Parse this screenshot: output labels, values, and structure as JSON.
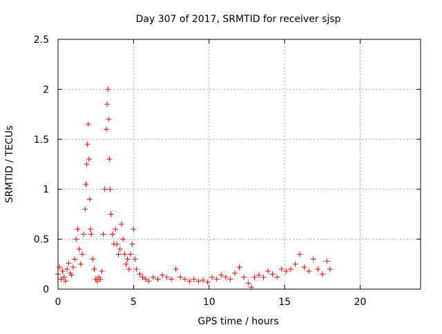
{
  "chart_data": {
    "type": "scatter",
    "title": "Day 307 of 2017, SRMTID for receiver sjsp",
    "xlabel": "GPS time / hours",
    "ylabel": "SRMTID / TECUs",
    "xlim": [
      0,
      24
    ],
    "ylim": [
      0,
      2.5
    ],
    "xticks": [
      0,
      5,
      10,
      15,
      20
    ],
    "xtick_labels": [
      "0",
      "5",
      "10",
      "15",
      "20"
    ],
    "yticks": [
      0,
      0.5,
      1,
      1.5,
      2,
      2.5
    ],
    "ytick_labels": [
      "0",
      "0.5",
      "1",
      "1.5",
      "2",
      "2.5"
    ],
    "grid": true,
    "marker": "+",
    "color": "#ee0000",
    "series": [
      {
        "name": "SRMTID",
        "x": [
          0.0,
          0.1,
          0.2,
          0.3,
          0.4,
          0.5,
          0.6,
          0.7,
          0.8,
          0.9,
          1.0,
          1.1,
          1.2,
          1.3,
          1.4,
          1.5,
          1.6,
          1.7,
          1.8,
          1.85,
          1.9,
          1.95,
          2.0,
          2.05,
          2.1,
          2.15,
          2.2,
          2.3,
          2.4,
          2.5,
          2.6,
          2.7,
          2.8,
          2.9,
          3.0,
          3.1,
          3.2,
          3.25,
          3.3,
          3.35,
          3.4,
          3.45,
          3.5,
          3.6,
          3.7,
          3.8,
          3.9,
          4.0,
          4.1,
          4.2,
          4.3,
          4.4,
          4.5,
          4.6,
          4.7,
          4.8,
          4.9,
          5.0,
          5.1,
          5.2,
          5.4,
          5.6,
          5.8,
          6.0,
          6.3,
          6.6,
          6.9,
          7.2,
          7.5,
          7.8,
          8.1,
          8.4,
          8.7,
          9.0,
          9.3,
          9.6,
          9.9,
          10.2,
          10.5,
          10.8,
          11.1,
          11.4,
          11.7,
          12.0,
          12.3,
          12.6,
          12.8,
          13.0,
          13.3,
          13.6,
          13.9,
          14.2,
          14.5,
          14.8,
          15.1,
          15.4,
          15.7,
          16.0,
          16.3,
          16.6,
          16.9,
          17.2,
          17.5,
          17.8,
          18.0
        ],
        "y": [
          0.15,
          0.22,
          0.1,
          0.18,
          0.12,
          0.08,
          0.2,
          0.26,
          0.16,
          0.14,
          0.22,
          0.3,
          0.5,
          0.6,
          0.4,
          0.25,
          0.35,
          0.55,
          0.8,
          1.05,
          1.25,
          1.45,
          1.65,
          1.3,
          0.9,
          0.6,
          0.55,
          0.3,
          0.2,
          0.1,
          0.08,
          0.12,
          0.1,
          0.18,
          0.55,
          1.0,
          1.6,
          1.85,
          2.0,
          1.7,
          1.3,
          1.0,
          0.75,
          0.55,
          0.45,
          0.6,
          0.45,
          0.35,
          0.4,
          0.65,
          0.5,
          0.35,
          0.25,
          0.3,
          0.2,
          0.35,
          0.45,
          0.6,
          0.3,
          0.2,
          0.15,
          0.12,
          0.1,
          0.08,
          0.12,
          0.1,
          0.14,
          0.12,
          0.1,
          0.2,
          0.12,
          0.1,
          0.08,
          0.1,
          0.08,
          0.09,
          0.07,
          0.12,
          0.1,
          0.14,
          0.12,
          0.1,
          0.16,
          0.22,
          0.12,
          0.06,
          0.02,
          0.12,
          0.14,
          0.12,
          0.18,
          0.15,
          0.12,
          0.2,
          0.18,
          0.2,
          0.25,
          0.35,
          0.22,
          0.18,
          0.3,
          0.2,
          0.15,
          0.28,
          0.2
        ]
      }
    ]
  }
}
